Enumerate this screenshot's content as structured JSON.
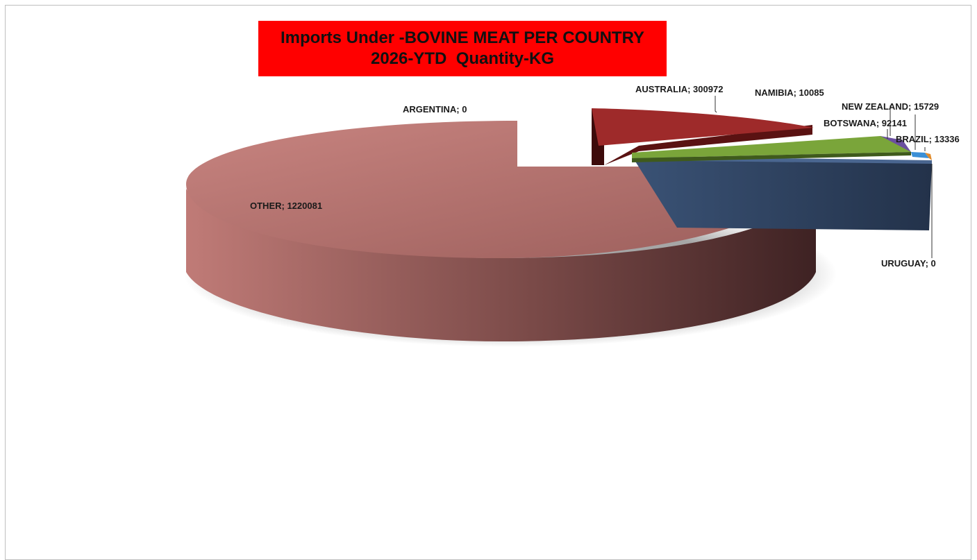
{
  "chart_data": {
    "type": "pie",
    "title_lines": [
      "Imports Under -BOVINE MEAT PER COUNTRY",
      "2026-YTD  Quantity-KG"
    ],
    "slices": [
      {
        "name": "OTHER",
        "value": 1220081,
        "label": "OTHER; 1220081",
        "color": "#b8716d"
      },
      {
        "name": "AUSTRALIA",
        "value": 300972,
        "label": "AUSTRALIA; 300972",
        "color": "#9e2a2a"
      },
      {
        "name": "NAMIBIA",
        "value": 10085,
        "label": "NAMIBIA; 10085",
        "color": "#6b4fa0"
      },
      {
        "name": "BOTSWANA",
        "value": 92141,
        "label": "BOTSWANA; 92141",
        "color": "#7aa53a"
      },
      {
        "name": "NEW ZEALAND",
        "value": 15729,
        "label": "NEW ZEALAND; 15729",
        "color": "#3b8fd6"
      },
      {
        "name": "BRAZIL",
        "value": 13336,
        "label": "BRAZIL; 13336",
        "color": "#e08a2a"
      },
      {
        "name": "URUGUAY",
        "value": 0,
        "label": "URUGUAY; 0",
        "color": "#2e4a6b"
      },
      {
        "name": "ARGENTINA",
        "value": 0,
        "label": "ARGENTINA; 0",
        "color": "#8a8a8a"
      }
    ],
    "legend": "none"
  }
}
